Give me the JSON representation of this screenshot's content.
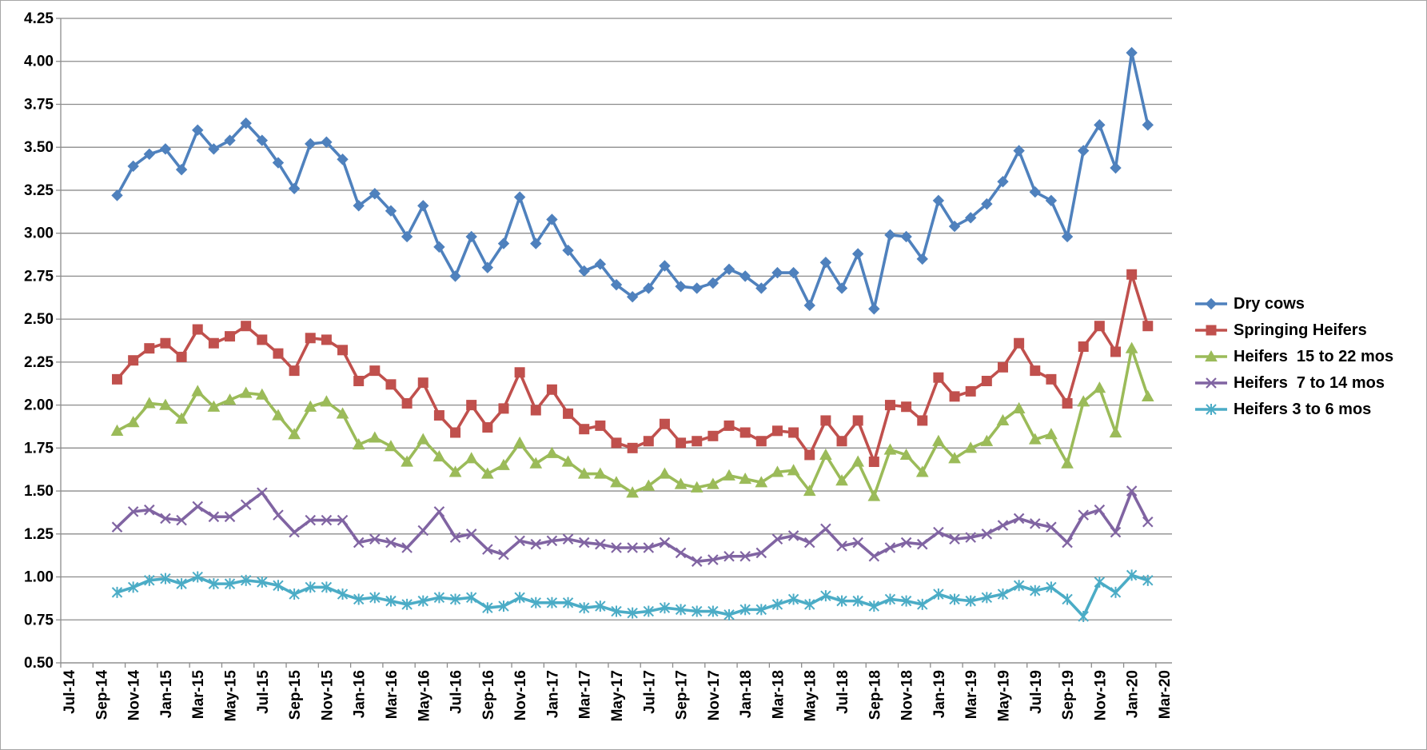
{
  "chart_data": {
    "type": "line",
    "title": "",
    "xlabel": "",
    "ylabel": "",
    "ylim": [
      0.5,
      4.25
    ],
    "yticks": [
      "0.50",
      "0.75",
      "1.00",
      "1.25",
      "1.50",
      "1.75",
      "2.00",
      "2.25",
      "2.50",
      "2.75",
      "3.00",
      "3.25",
      "3.50",
      "3.75",
      "4.00",
      "4.25"
    ],
    "xtick_labels": [
      "Jul-14",
      "Sep-14",
      "Nov-14",
      "Jan-15",
      "Mar-15",
      "May-15",
      "Jul-15",
      "Sep-15",
      "Nov-15",
      "Jan-16",
      "Mar-16",
      "May-16",
      "Jul-16",
      "Sep-16",
      "Nov-16",
      "Jan-17",
      "Mar-17",
      "May-17",
      "Jul-17",
      "Sep-17",
      "Nov-17",
      "Jan-18",
      "Mar-18",
      "May-18",
      "Jul-18",
      "Sep-18",
      "Nov-18",
      "Jan-19",
      "Mar-19",
      "May-19",
      "Jul-19",
      "Sep-19",
      "Nov-19",
      "Jan-20",
      "Mar-20"
    ],
    "x": [
      "Oct-14",
      "Nov-14",
      "Dec-14",
      "Jan-15",
      "Feb-15",
      "Mar-15",
      "Apr-15",
      "May-15",
      "Jun-15",
      "Jul-15",
      "Aug-15",
      "Sep-15",
      "Oct-15",
      "Nov-15",
      "Dec-15",
      "Jan-16",
      "Feb-16",
      "Mar-16",
      "Apr-16",
      "May-16",
      "Jun-16",
      "Jul-16",
      "Aug-16",
      "Sep-16",
      "Oct-16",
      "Nov-16",
      "Dec-16",
      "Jan-17",
      "Feb-17",
      "Mar-17",
      "Apr-17",
      "May-17",
      "Jun-17",
      "Jul-17",
      "Aug-17",
      "Sep-17",
      "Oct-17",
      "Nov-17",
      "Dec-17",
      "Jan-18",
      "Feb-18",
      "Mar-18",
      "Apr-18",
      "May-18",
      "Jun-18",
      "Jul-18",
      "Aug-18",
      "Sep-18",
      "Oct-18",
      "Nov-18",
      "Dec-18",
      "Jan-19",
      "Feb-19",
      "Mar-19",
      "Apr-19",
      "May-19",
      "Jun-19",
      "Jul-19",
      "Aug-19",
      "Sep-19",
      "Oct-19",
      "Nov-19",
      "Dec-19",
      "Jan-20",
      "Feb-20"
    ],
    "grid": true,
    "legend_position": "right",
    "series": [
      {
        "name": "Dry cows",
        "color": "#4f81bd",
        "marker": "diamond",
        "values": [
          3.22,
          3.39,
          3.46,
          3.49,
          3.37,
          3.6,
          3.49,
          3.54,
          3.64,
          3.54,
          3.41,
          3.26,
          3.52,
          3.53,
          3.43,
          3.16,
          3.23,
          3.13,
          2.98,
          3.16,
          2.92,
          2.75,
          2.98,
          2.8,
          2.94,
          3.21,
          2.94,
          3.08,
          2.9,
          2.78,
          2.82,
          2.7,
          2.63,
          2.68,
          2.81,
          2.69,
          2.68,
          2.71,
          2.79,
          2.75,
          2.68,
          2.77,
          2.77,
          2.58,
          2.83,
          2.68,
          2.88,
          2.56,
          2.99,
          2.98,
          2.85,
          3.19,
          3.04,
          3.09,
          3.17,
          3.3,
          3.48,
          3.24,
          3.19,
          2.98,
          3.48,
          3.63,
          3.38,
          4.05,
          3.63
        ]
      },
      {
        "name": "Springing Heifers",
        "color": "#c0504d",
        "marker": "square",
        "values": [
          2.15,
          2.26,
          2.33,
          2.36,
          2.28,
          2.44,
          2.36,
          2.4,
          2.46,
          2.38,
          2.3,
          2.2,
          2.39,
          2.38,
          2.32,
          2.14,
          2.2,
          2.12,
          2.01,
          2.13,
          1.94,
          1.84,
          2.0,
          1.87,
          1.98,
          2.19,
          1.97,
          2.09,
          1.95,
          1.86,
          1.88,
          1.78,
          1.75,
          1.79,
          1.89,
          1.78,
          1.79,
          1.82,
          1.88,
          1.84,
          1.79,
          1.85,
          1.84,
          1.71,
          1.91,
          1.79,
          1.91,
          1.67,
          2.0,
          1.99,
          1.91,
          2.16,
          2.05,
          2.08,
          2.14,
          2.22,
          2.36,
          2.2,
          2.15,
          2.01,
          2.34,
          2.46,
          2.31,
          2.76,
          2.46
        ]
      },
      {
        "name": "Heifers  15 to 22 mos",
        "color": "#9bbb59",
        "marker": "triangle",
        "values": [
          1.85,
          1.9,
          2.01,
          2.0,
          1.92,
          2.08,
          1.99,
          2.03,
          2.07,
          2.06,
          1.94,
          1.83,
          1.99,
          2.02,
          1.95,
          1.77,
          1.81,
          1.76,
          1.67,
          1.8,
          1.7,
          1.61,
          1.69,
          1.6,
          1.65,
          1.78,
          1.66,
          1.72,
          1.67,
          1.6,
          1.6,
          1.55,
          1.49,
          1.53,
          1.6,
          1.54,
          1.52,
          1.54,
          1.59,
          1.57,
          1.55,
          1.61,
          1.62,
          1.5,
          1.71,
          1.56,
          1.67,
          1.47,
          1.74,
          1.71,
          1.61,
          1.79,
          1.69,
          1.75,
          1.79,
          1.91,
          1.98,
          1.8,
          1.83,
          1.66,
          2.02,
          2.1,
          1.84,
          2.33,
          2.05
        ]
      },
      {
        "name": "Heifers  7 to 14 mos",
        "color": "#8064a2",
        "marker": "x",
        "values": [
          1.29,
          1.38,
          1.39,
          1.34,
          1.33,
          1.41,
          1.35,
          1.35,
          1.42,
          1.49,
          1.36,
          1.26,
          1.33,
          1.33,
          1.33,
          1.2,
          1.22,
          1.2,
          1.17,
          1.27,
          1.38,
          1.23,
          1.25,
          1.16,
          1.13,
          1.21,
          1.19,
          1.21,
          1.22,
          1.2,
          1.19,
          1.17,
          1.17,
          1.17,
          1.2,
          1.14,
          1.09,
          1.1,
          1.12,
          1.12,
          1.14,
          1.22,
          1.24,
          1.2,
          1.28,
          1.18,
          1.2,
          1.12,
          1.17,
          1.2,
          1.19,
          1.26,
          1.22,
          1.23,
          1.25,
          1.3,
          1.34,
          1.31,
          1.29,
          1.2,
          1.36,
          1.39,
          1.26,
          1.5,
          1.32
        ]
      },
      {
        "name": "Heifers 3 to 6 mos",
        "color": "#4bacc6",
        "marker": "asterisk",
        "values": [
          0.91,
          0.94,
          0.98,
          0.99,
          0.96,
          1.0,
          0.96,
          0.96,
          0.98,
          0.97,
          0.95,
          0.9,
          0.94,
          0.94,
          0.9,
          0.87,
          0.88,
          0.86,
          0.84,
          0.86,
          0.88,
          0.87,
          0.88,
          0.82,
          0.83,
          0.88,
          0.85,
          0.85,
          0.85,
          0.82,
          0.83,
          0.8,
          0.79,
          0.8,
          0.82,
          0.81,
          0.8,
          0.8,
          0.78,
          0.81,
          0.81,
          0.84,
          0.87,
          0.84,
          0.89,
          0.86,
          0.86,
          0.83,
          0.87,
          0.86,
          0.84,
          0.9,
          0.87,
          0.86,
          0.88,
          0.9,
          0.95,
          0.92,
          0.94,
          0.87,
          0.77,
          0.97,
          0.91,
          1.01,
          0.98
        ]
      }
    ]
  }
}
